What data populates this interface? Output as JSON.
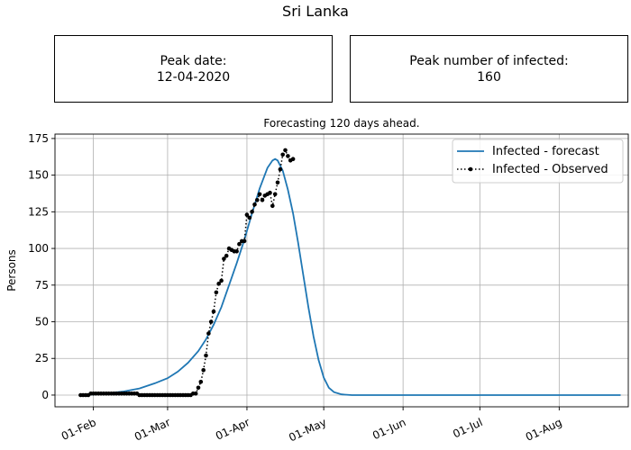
{
  "suptitle": "Sri Lanka",
  "info_boxes": {
    "peak_date_label": "Peak date:",
    "peak_date_value": "12-04-2020",
    "peak_infected_label": "Peak number of infected:",
    "peak_infected_value": "160"
  },
  "chart_data": {
    "type": "line",
    "title": "Forecasting 120 days ahead.",
    "xlabel": "",
    "ylabel": "Persons",
    "x_axis": "date",
    "xlim": [
      "2020-01-17",
      "2020-08-28"
    ],
    "ylim": [
      -8,
      178
    ],
    "xticks": [
      {
        "date": "2020-02-01",
        "label": "01-Feb"
      },
      {
        "date": "2020-03-01",
        "label": "01-Mar"
      },
      {
        "date": "2020-04-01",
        "label": "01-Apr"
      },
      {
        "date": "2020-05-01",
        "label": "01-May"
      },
      {
        "date": "2020-06-01",
        "label": "01-Jun"
      },
      {
        "date": "2020-07-01",
        "label": "01-Jul"
      },
      {
        "date": "2020-08-01",
        "label": "01-Aug"
      }
    ],
    "yticks": [
      0,
      25,
      50,
      75,
      100,
      125,
      150,
      175
    ],
    "grid": true,
    "legend_position": "upper right",
    "series": [
      {
        "name": "Infected - forecast",
        "color": "#1f77b4",
        "style": "solid",
        "points": [
          [
            "2020-01-27",
            0
          ],
          [
            "2020-02-01",
            0.4
          ],
          [
            "2020-02-07",
            1.2
          ],
          [
            "2020-02-13",
            2.5
          ],
          [
            "2020-02-19",
            4.5
          ],
          [
            "2020-02-25",
            8
          ],
          [
            "2020-03-01",
            11.5
          ],
          [
            "2020-03-05",
            16
          ],
          [
            "2020-03-09",
            22
          ],
          [
            "2020-03-13",
            30
          ],
          [
            "2020-03-16",
            38
          ],
          [
            "2020-03-19",
            48
          ],
          [
            "2020-03-22",
            60
          ],
          [
            "2020-03-25",
            75
          ],
          [
            "2020-03-28",
            90
          ],
          [
            "2020-03-31",
            106
          ],
          [
            "2020-04-03",
            124
          ],
          [
            "2020-04-06",
            141
          ],
          [
            "2020-04-09",
            155
          ],
          [
            "2020-04-11",
            160
          ],
          [
            "2020-04-12",
            161
          ],
          [
            "2020-04-13",
            160
          ],
          [
            "2020-04-15",
            153
          ],
          [
            "2020-04-17",
            140
          ],
          [
            "2020-04-19",
            124
          ],
          [
            "2020-04-21",
            104
          ],
          [
            "2020-04-23",
            82
          ],
          [
            "2020-04-25",
            60
          ],
          [
            "2020-04-27",
            40
          ],
          [
            "2020-04-29",
            24
          ],
          [
            "2020-05-01",
            12
          ],
          [
            "2020-05-03",
            5
          ],
          [
            "2020-05-05",
            2
          ],
          [
            "2020-05-08",
            0.5
          ],
          [
            "2020-05-12",
            0
          ],
          [
            "2020-06-01",
            0
          ],
          [
            "2020-07-01",
            0
          ],
          [
            "2020-08-01",
            0
          ],
          [
            "2020-08-25",
            0
          ]
        ]
      },
      {
        "name": "Infected - Observed",
        "color": "#000000",
        "style": "dotted",
        "marker": "circle",
        "points": [
          [
            "2020-01-27",
            0
          ],
          [
            "2020-01-28",
            0
          ],
          [
            "2020-01-29",
            0
          ],
          [
            "2020-01-30",
            0
          ],
          [
            "2020-01-31",
            1
          ],
          [
            "2020-02-01",
            1
          ],
          [
            "2020-02-02",
            1
          ],
          [
            "2020-02-03",
            1
          ],
          [
            "2020-02-04",
            1
          ],
          [
            "2020-02-05",
            1
          ],
          [
            "2020-02-06",
            1
          ],
          [
            "2020-02-07",
            1
          ],
          [
            "2020-02-08",
            1
          ],
          [
            "2020-02-09",
            1
          ],
          [
            "2020-02-10",
            1
          ],
          [
            "2020-02-11",
            1
          ],
          [
            "2020-02-12",
            1
          ],
          [
            "2020-02-13",
            1
          ],
          [
            "2020-02-14",
            1
          ],
          [
            "2020-02-15",
            1
          ],
          [
            "2020-02-16",
            1
          ],
          [
            "2020-02-17",
            1
          ],
          [
            "2020-02-18",
            1
          ],
          [
            "2020-02-19",
            0
          ],
          [
            "2020-02-20",
            0
          ],
          [
            "2020-02-21",
            0
          ],
          [
            "2020-02-22",
            0
          ],
          [
            "2020-02-23",
            0
          ],
          [
            "2020-02-24",
            0
          ],
          [
            "2020-02-25",
            0
          ],
          [
            "2020-02-26",
            0
          ],
          [
            "2020-02-27",
            0
          ],
          [
            "2020-02-28",
            0
          ],
          [
            "2020-02-29",
            0
          ],
          [
            "2020-03-01",
            0
          ],
          [
            "2020-03-02",
            0
          ],
          [
            "2020-03-03",
            0
          ],
          [
            "2020-03-04",
            0
          ],
          [
            "2020-03-05",
            0
          ],
          [
            "2020-03-06",
            0
          ],
          [
            "2020-03-07",
            0
          ],
          [
            "2020-03-08",
            0
          ],
          [
            "2020-03-09",
            0
          ],
          [
            "2020-03-10",
            0
          ],
          [
            "2020-03-11",
            1
          ],
          [
            "2020-03-12",
            1
          ],
          [
            "2020-03-13",
            5
          ],
          [
            "2020-03-14",
            9
          ],
          [
            "2020-03-15",
            17
          ],
          [
            "2020-03-16",
            27
          ],
          [
            "2020-03-17",
            42
          ],
          [
            "2020-03-18",
            50
          ],
          [
            "2020-03-19",
            57
          ],
          [
            "2020-03-20",
            70
          ],
          [
            "2020-03-21",
            76
          ],
          [
            "2020-03-22",
            78
          ],
          [
            "2020-03-23",
            93
          ],
          [
            "2020-03-24",
            95
          ],
          [
            "2020-03-25",
            100
          ],
          [
            "2020-03-26",
            99
          ],
          [
            "2020-03-27",
            98
          ],
          [
            "2020-03-28",
            98
          ],
          [
            "2020-03-29",
            103
          ],
          [
            "2020-03-30",
            105
          ],
          [
            "2020-03-31",
            105
          ],
          [
            "2020-04-01",
            123
          ],
          [
            "2020-04-02",
            121
          ],
          [
            "2020-04-03",
            125
          ],
          [
            "2020-04-04",
            130
          ],
          [
            "2020-04-05",
            133
          ],
          [
            "2020-04-06",
            137
          ],
          [
            "2020-04-07",
            133
          ],
          [
            "2020-04-08",
            136
          ],
          [
            "2020-04-09",
            137
          ],
          [
            "2020-04-10",
            138
          ],
          [
            "2020-04-11",
            129
          ],
          [
            "2020-04-12",
            137
          ],
          [
            "2020-04-13",
            145
          ],
          [
            "2020-04-14",
            154
          ],
          [
            "2020-04-15",
            164
          ],
          [
            "2020-04-16",
            167
          ],
          [
            "2020-04-17",
            163
          ],
          [
            "2020-04-18",
            160
          ],
          [
            "2020-04-19",
            161
          ]
        ]
      }
    ]
  }
}
